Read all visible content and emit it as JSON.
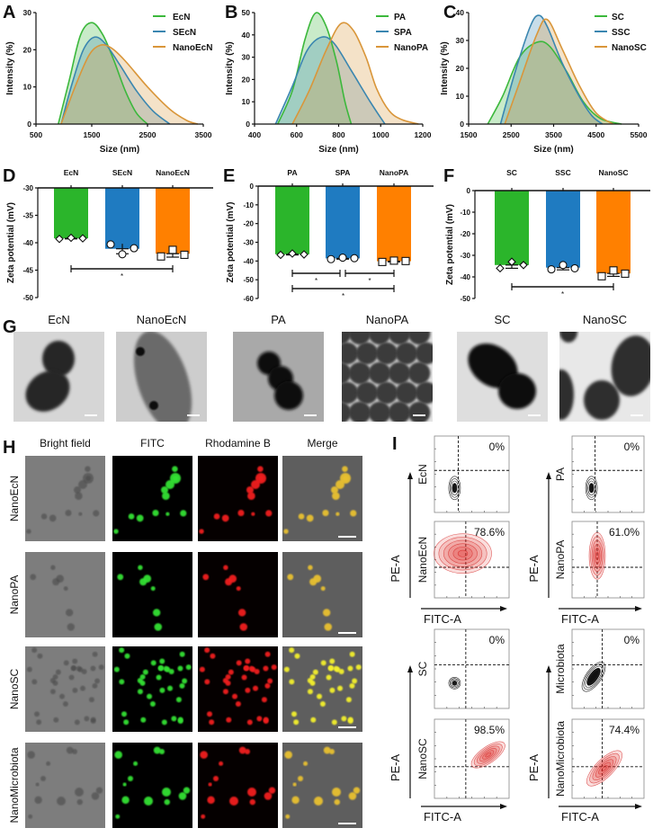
{
  "panel_labels": {
    "A": "A",
    "B": "B",
    "C": "C",
    "D": "D",
    "E": "E",
    "F": "F",
    "G": "G",
    "H": "H",
    "I": "I"
  },
  "chart_data": [
    {
      "type": "area",
      "panel": "A",
      "xlabel": "Size (nm)",
      "ylabel": "Intensity (%)",
      "xlim": [
        500,
        3500
      ],
      "ylim": [
        0,
        30
      ],
      "xticks": [
        500,
        1500,
        2500,
        3500
      ],
      "yticks": [
        0,
        10,
        20,
        30
      ],
      "legend": "top-right",
      "series": [
        {
          "name": "EcN",
          "color": "#3cb83c",
          "points": [
            [
              900,
              0
            ],
            [
              1100,
              12
            ],
            [
              1300,
              24
            ],
            [
              1500,
              27.3
            ],
            [
              1700,
              24
            ],
            [
              1900,
              17
            ],
            [
              2100,
              9
            ],
            [
              2300,
              3
            ],
            [
              2500,
              0
            ]
          ]
        },
        {
          "name": "SEcN",
          "color": "#3a86b0",
          "points": [
            [
              950,
              0
            ],
            [
              1150,
              11
            ],
            [
              1350,
              20
            ],
            [
              1550,
              23.4
            ],
            [
              1750,
              21.5
            ],
            [
              2000,
              16
            ],
            [
              2300,
              9
            ],
            [
              2600,
              3.5
            ],
            [
              2900,
              0
            ]
          ]
        },
        {
          "name": "NanoEcN",
          "color": "#d9963a",
          "points": [
            [
              950,
              0
            ],
            [
              1200,
              10
            ],
            [
              1450,
              18.5
            ],
            [
              1650,
              21.2
            ],
            [
              1850,
              20.5
            ],
            [
              2100,
              17
            ],
            [
              2500,
              10
            ],
            [
              2900,
              4
            ],
            [
              3200,
              1
            ],
            [
              3400,
              0
            ]
          ]
        }
      ]
    },
    {
      "type": "area",
      "panel": "B",
      "xlabel": "Size (nm)",
      "ylabel": "Intensity (%)",
      "xlim": [
        400,
        1200
      ],
      "ylim": [
        0,
        50
      ],
      "xticks": [
        400,
        600,
        800,
        1000,
        1200
      ],
      "yticks": [
        0,
        10,
        20,
        30,
        40,
        50
      ],
      "legend": "top-right",
      "series": [
        {
          "name": "PA",
          "color": "#3cb83c",
          "points": [
            [
              510,
              0
            ],
            [
              580,
              15
            ],
            [
              640,
              38
            ],
            [
              690,
              49.8
            ],
            [
              740,
              44
            ],
            [
              790,
              28
            ],
            [
              830,
              10
            ],
            [
              860,
              0
            ]
          ]
        },
        {
          "name": "SPA",
          "color": "#3a86b0",
          "points": [
            [
              500,
              0
            ],
            [
              580,
              17
            ],
            [
              650,
              33
            ],
            [
              720,
              39
            ],
            [
              780,
              36
            ],
            [
              860,
              24
            ],
            [
              950,
              10
            ],
            [
              1020,
              0
            ]
          ]
        },
        {
          "name": "NanoPA",
          "color": "#d9963a",
          "points": [
            [
              580,
              0
            ],
            [
              660,
              15
            ],
            [
              740,
              33
            ],
            [
              810,
              45
            ],
            [
              870,
              42
            ],
            [
              930,
              30
            ],
            [
              980,
              16
            ],
            [
              1040,
              6
            ],
            [
              1100,
              2
            ],
            [
              1180,
              0
            ]
          ]
        }
      ]
    },
    {
      "type": "area",
      "panel": "C",
      "xlabel": "Size (nm)",
      "ylabel": "Intensity (%)",
      "xlim": [
        1500,
        5500
      ],
      "ylim": [
        0,
        40
      ],
      "xticks": [
        1500,
        2500,
        3500,
        4500,
        5500
      ],
      "yticks": [
        0,
        10,
        20,
        30,
        40
      ],
      "legend": "top-right",
      "series": [
        {
          "name": "SC",
          "color": "#3cb83c",
          "points": [
            [
              1950,
              0
            ],
            [
              2300,
              10
            ],
            [
              2700,
              24
            ],
            [
              3100,
              29.3
            ],
            [
              3400,
              28
            ],
            [
              3800,
              19
            ],
            [
              4200,
              8
            ],
            [
              4600,
              2
            ],
            [
              5100,
              0
            ]
          ]
        },
        {
          "name": "SSC",
          "color": "#3a86b0",
          "points": [
            [
              2250,
              0
            ],
            [
              2600,
              19
            ],
            [
              2950,
              35
            ],
            [
              3150,
              39
            ],
            [
              3350,
              35
            ],
            [
              3700,
              22
            ],
            [
              4100,
              10
            ],
            [
              4400,
              3
            ],
            [
              4650,
              0
            ]
          ]
        },
        {
          "name": "NanoSC",
          "color": "#d9963a",
          "points": [
            [
              2350,
              0
            ],
            [
              2700,
              15
            ],
            [
              3100,
              32
            ],
            [
              3350,
              37.5
            ],
            [
              3700,
              27
            ],
            [
              4100,
              14
            ],
            [
              4500,
              4
            ],
            [
              4900,
              0
            ]
          ]
        }
      ]
    },
    {
      "type": "bar",
      "panel": "D",
      "ylabel": "Zeta potential (mV)",
      "categories": [
        "EcN",
        "SEcN",
        "NanoEcN"
      ],
      "values": [
        -39.2,
        -41.1,
        -42.0
      ],
      "replicates": [
        [
          -39.3,
          -39.1,
          -39.2
        ],
        [
          -40.3,
          -42.1,
          -41.0
        ],
        [
          -42.5,
          -41.3,
          -42.2
        ]
      ],
      "markers": [
        "diamond",
        "circle",
        "square"
      ],
      "colors": [
        "#2bb52b",
        "#1f7bc1",
        "#ff8000"
      ],
      "ylim": [
        -50,
        -30
      ],
      "yticks": [
        -30,
        -35,
        -40,
        -45,
        -50
      ],
      "significance": [
        {
          "from": 0,
          "to": 2,
          "label": "*"
        }
      ]
    },
    {
      "type": "bar",
      "panel": "E",
      "ylabel": "Zeta potential (mV)",
      "categories": [
        "PA",
        "SPA",
        "NanoPA"
      ],
      "values": [
        -36.4,
        -38.6,
        -40.1
      ],
      "replicates": [
        [
          -36.7,
          -36.0,
          -36.5
        ],
        [
          -39.0,
          -38.2,
          -38.5
        ],
        [
          -40.5,
          -39.8,
          -40.0
        ]
      ],
      "markers": [
        "diamond",
        "circle",
        "square"
      ],
      "colors": [
        "#2bb52b",
        "#1f7bc1",
        "#ff8000"
      ],
      "ylim": [
        -60,
        0
      ],
      "yticks": [
        0,
        -10,
        -20,
        -30,
        -40,
        -50,
        -60
      ],
      "significance": [
        {
          "from": 0,
          "to": 1,
          "label": "*"
        },
        {
          "from": 1,
          "to": 2,
          "label": "*"
        },
        {
          "from": 0,
          "to": 2,
          "label": "*"
        }
      ]
    },
    {
      "type": "bar",
      "panel": "F",
      "ylabel": "Zeta potential (mV)",
      "categories": [
        "SC",
        "SSC",
        "NanoSC"
      ],
      "values": [
        -34.5,
        -35.7,
        -38.4
      ],
      "replicates": [
        [
          -36.0,
          -33.0,
          -34.5
        ],
        [
          -36.5,
          -34.5,
          -36.0
        ],
        [
          -39.7,
          -37.0,
          -38.5
        ]
      ],
      "markers": [
        "diamond",
        "circle",
        "square"
      ],
      "colors": [
        "#2bb52b",
        "#1f7bc1",
        "#ff8000"
      ],
      "ylim": [
        -50,
        0
      ],
      "yticks": [
        0,
        -10,
        -20,
        -30,
        -40,
        -50
      ],
      "significance": [
        {
          "from": 0,
          "to": 2,
          "label": "*"
        }
      ]
    }
  ],
  "tem": {
    "images": [
      "EcN",
      "NanoEcN",
      "PA",
      "NanoPA",
      "SC",
      "NanoSC"
    ]
  },
  "fluorescence": {
    "columns": [
      "Bright field",
      "FITC",
      "Rhodamine B",
      "Merge"
    ],
    "rows": [
      "NanoEcN",
      "NanoPA",
      "NanoSC",
      "NanoMicrobiota"
    ]
  },
  "flow": {
    "x_axis": "FITC-A",
    "y_axis": "PE-A",
    "groups": [
      {
        "control": "EcN",
        "control_pct": "0%",
        "nano": "NanoEcN",
        "nano_pct": "78.6%"
      },
      {
        "control": "PA",
        "control_pct": "0%",
        "nano": "NanoPA",
        "nano_pct": "61.0%"
      },
      {
        "control": "SC",
        "control_pct": "0%",
        "nano": "NanoSC",
        "nano_pct": "98.5%"
      },
      {
        "control": "Microbiota",
        "control_pct": "0%",
        "nano": "NanoMicrobiota",
        "nano_pct": "74.4%"
      }
    ]
  }
}
